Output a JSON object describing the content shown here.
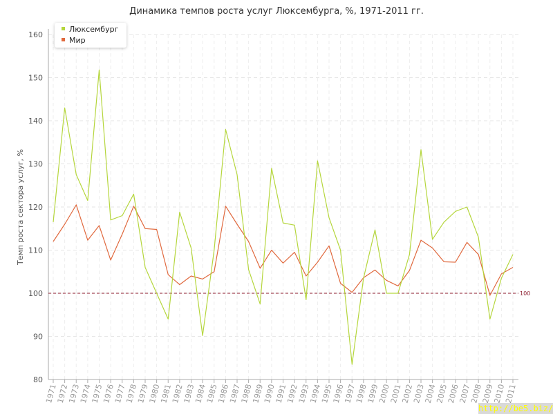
{
  "chart_data": {
    "type": "line",
    "title": "Динамика темпов роста услуг Люксембурга, %, 1971-2011 гг.",
    "ylabel": "Темп роста сектора услуг, %",
    "xlabel": "",
    "ylim": [
      80,
      160
    ],
    "yticks": [
      "80",
      "90",
      "100",
      "110",
      "120",
      "130",
      "140",
      "150",
      "160"
    ],
    "categories": [
      "1971",
      "1972",
      "1973",
      "1974",
      "1975",
      "1976",
      "1977",
      "1978",
      "1979",
      "1980",
      "1981",
      "1982",
      "1983",
      "1984",
      "1985",
      "1986",
      "1987",
      "1988",
      "1989",
      "1990",
      "1991",
      "1992",
      "1993",
      "1994",
      "1995",
      "1996",
      "1997",
      "1998",
      "1999",
      "2000",
      "2001",
      "2002",
      "2003",
      "2004",
      "2005",
      "2006",
      "2007",
      "2008",
      "2009",
      "2010",
      "2011"
    ],
    "grid": true,
    "legend_position": "top-left",
    "reference_line": {
      "value": 100,
      "label": "100",
      "color": "#8b1a2b"
    },
    "series": [
      {
        "name": "Люксембург",
        "color": "#b5d63c",
        "values": [
          116.5,
          143.0,
          127.5,
          121.5,
          151.8,
          117.0,
          118.0,
          123.0,
          106.0,
          100.0,
          94.0,
          118.8,
          110.5,
          90.2,
          110.0,
          138.0,
          127.5,
          105.5,
          97.5,
          129.0,
          116.3,
          115.8,
          98.5,
          130.7,
          117.5,
          110.0,
          83.5,
          103.5,
          114.7,
          100.0,
          100.0,
          109.0,
          133.3,
          112.5,
          116.5,
          119.0,
          120.0,
          113.0,
          94.0,
          103.5,
          109.0
        ]
      },
      {
        "name": "Мир",
        "color": "#e0693e",
        "values": [
          112.0,
          116.0,
          120.5,
          112.3,
          115.7,
          107.7,
          113.7,
          120.2,
          115.0,
          114.8,
          104.3,
          102.0,
          104.0,
          103.3,
          105.0,
          120.2,
          116.0,
          112.0,
          105.8,
          110.0,
          107.0,
          109.5,
          104.0,
          107.2,
          111.0,
          102.3,
          100.2,
          103.6,
          105.4,
          103.0,
          101.7,
          105.3,
          112.3,
          110.5,
          107.3,
          107.2,
          111.8,
          109.0,
          99.5,
          104.5,
          106.0
        ]
      }
    ]
  },
  "watermark": "http://be5.biz/"
}
